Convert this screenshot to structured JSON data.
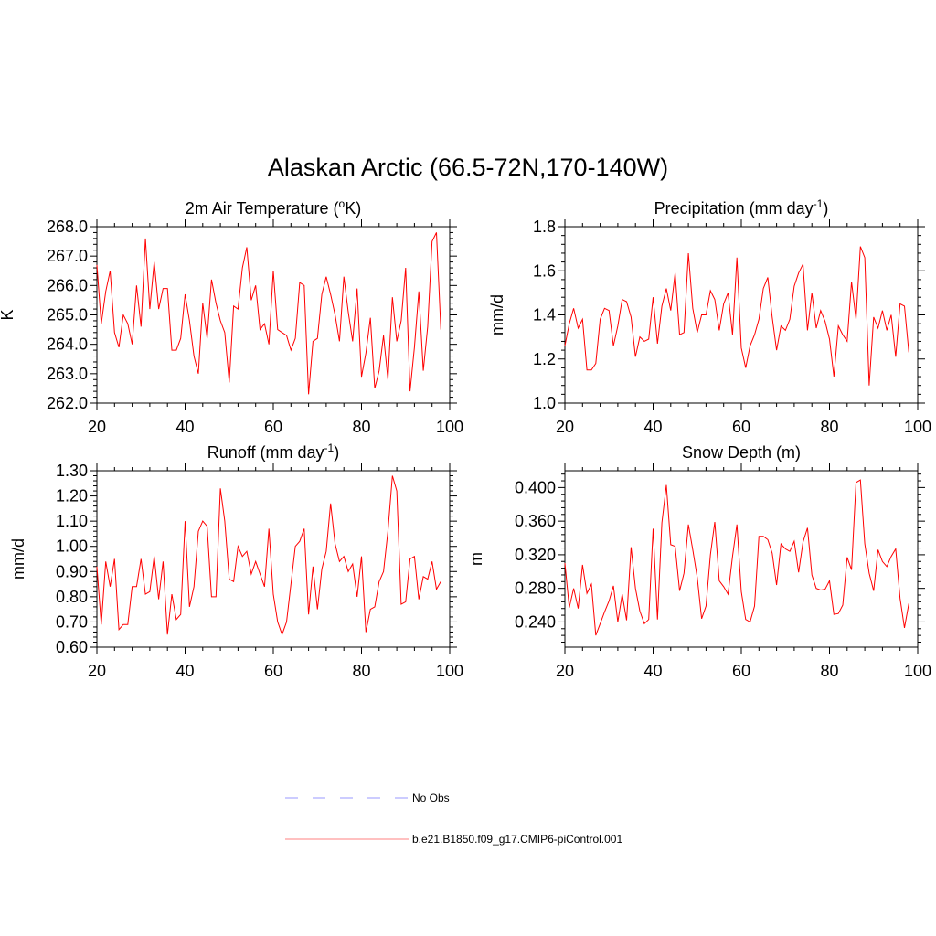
{
  "figure": {
    "title": "Alaskan Arctic (66.5-72N,170-140W)"
  },
  "legend": {
    "entries": [
      {
        "label": "No Obs",
        "color": "#9999ff",
        "dash": true
      },
      {
        "label": "b.e21.B1850.f09_g17.CMIP6-piControl.001",
        "color": "#ff8080",
        "dash": false
      }
    ]
  },
  "colors": {
    "series": "#ff0000",
    "axis": "#000000"
  },
  "chart_data": [
    {
      "type": "line",
      "title": "2m Air Temperature",
      "title_sup": "o",
      "title_pre": "2m Air Temperature (",
      "title_post": "K)",
      "ylabel": "K",
      "xlim": [
        20,
        100
      ],
      "ylim": [
        262.0,
        268.0
      ],
      "yticks": [
        262.0,
        263.0,
        264.0,
        265.0,
        266.0,
        267.0,
        268.0
      ],
      "ytick_labels": [
        "262.0",
        "263.0",
        "264.0",
        "265.0",
        "266.0",
        "267.0",
        "268.0"
      ],
      "xticks": [
        20,
        40,
        60,
        80,
        100
      ],
      "xtick_labels": [
        "20",
        "40",
        "60",
        "80",
        "100"
      ],
      "series": [
        {
          "name": "b.e21.B1850.f09_g17.CMIP6-piControl.001",
          "x": [
            20,
            21,
            22,
            23,
            24,
            25,
            26,
            27,
            28,
            29,
            30,
            31,
            32,
            33,
            34,
            35,
            36,
            37,
            38,
            39,
            40,
            41,
            42,
            43,
            44,
            45,
            46,
            47,
            48,
            49,
            50,
            51,
            52,
            53,
            54,
            55,
            56,
            57,
            58,
            59,
            60,
            61,
            62,
            63,
            64,
            65,
            66,
            67,
            68,
            69,
            70,
            71,
            72,
            73,
            74,
            75,
            76,
            77,
            78,
            79,
            80,
            81,
            82,
            83,
            84,
            85,
            86,
            87,
            88,
            89,
            90,
            91,
            92,
            93,
            94,
            95,
            96,
            97,
            98
          ],
          "values": [
            266.7,
            264.7,
            265.8,
            266.5,
            264.4,
            263.9,
            265.0,
            264.7,
            264.0,
            266.0,
            264.6,
            267.6,
            265.2,
            266.8,
            265.2,
            265.9,
            265.9,
            263.8,
            263.8,
            264.2,
            265.7,
            264.8,
            263.6,
            263.0,
            265.4,
            264.2,
            266.2,
            265.4,
            264.8,
            264.4,
            262.7,
            265.3,
            265.2,
            266.6,
            267.3,
            265.5,
            266.0,
            264.5,
            264.7,
            264.0,
            266.5,
            264.5,
            264.4,
            264.3,
            263.8,
            264.2,
            266.1,
            266.0,
            262.3,
            264.1,
            264.2,
            265.7,
            266.3,
            265.7,
            265.0,
            264.1,
            266.3,
            265.1,
            264.1,
            265.9,
            262.9,
            263.7,
            264.9,
            262.5,
            263.1,
            264.3,
            262.8,
            265.6,
            264.1,
            264.8,
            266.6,
            262.4,
            263.9,
            265.8,
            263.1,
            264.6,
            267.5,
            267.8,
            264.5
          ]
        }
      ]
    },
    {
      "type": "line",
      "title_pre": "Precipitation (mm day",
      "title_sup": "-1",
      "title_post": ")",
      "ylabel": "mm/d",
      "xlim": [
        20,
        100
      ],
      "ylim": [
        1.0,
        1.8
      ],
      "yticks": [
        1.0,
        1.2,
        1.4,
        1.6,
        1.8
      ],
      "ytick_labels": [
        "1.0",
        "1.2",
        "1.4",
        "1.6",
        "1.8"
      ],
      "xticks": [
        20,
        40,
        60,
        80,
        100
      ],
      "xtick_labels": [
        "20",
        "40",
        "60",
        "80",
        "100"
      ],
      "series": [
        {
          "name": "b.e21.B1850.f09_g17.CMIP6-piControl.001",
          "x": [
            20,
            21,
            22,
            23,
            24,
            25,
            26,
            27,
            28,
            29,
            30,
            31,
            32,
            33,
            34,
            35,
            36,
            37,
            38,
            39,
            40,
            41,
            42,
            43,
            44,
            45,
            46,
            47,
            48,
            49,
            50,
            51,
            52,
            53,
            54,
            55,
            56,
            57,
            58,
            59,
            60,
            61,
            62,
            63,
            64,
            65,
            66,
            67,
            68,
            69,
            70,
            71,
            72,
            73,
            74,
            75,
            76,
            77,
            78,
            79,
            80,
            81,
            82,
            83,
            84,
            85,
            86,
            87,
            88,
            89,
            90,
            91,
            92,
            93,
            94,
            95,
            96,
            97,
            98
          ],
          "values": [
            1.26,
            1.36,
            1.43,
            1.34,
            1.38,
            1.15,
            1.15,
            1.18,
            1.38,
            1.43,
            1.42,
            1.26,
            1.35,
            1.47,
            1.46,
            1.39,
            1.21,
            1.3,
            1.28,
            1.29,
            1.48,
            1.27,
            1.44,
            1.52,
            1.42,
            1.59,
            1.31,
            1.32,
            1.68,
            1.43,
            1.32,
            1.4,
            1.4,
            1.51,
            1.47,
            1.33,
            1.45,
            1.5,
            1.31,
            1.66,
            1.25,
            1.16,
            1.26,
            1.31,
            1.38,
            1.52,
            1.57,
            1.39,
            1.24,
            1.35,
            1.33,
            1.38,
            1.53,
            1.59,
            1.63,
            1.33,
            1.5,
            1.34,
            1.42,
            1.37,
            1.29,
            1.12,
            1.35,
            1.31,
            1.28,
            1.55,
            1.38,
            1.71,
            1.66,
            1.08,
            1.39,
            1.34,
            1.42,
            1.33,
            1.4,
            1.21,
            1.45,
            1.44,
            1.23
          ]
        }
      ]
    },
    {
      "type": "line",
      "title_pre": "Runoff (mm day",
      "title_sup": "-1",
      "title_post": ")",
      "ylabel": "mm/d",
      "xlim": [
        20,
        100
      ],
      "ylim": [
        0.6,
        1.3
      ],
      "yticks": [
        0.6,
        0.7,
        0.8,
        0.9,
        1.0,
        1.1,
        1.2,
        1.3
      ],
      "ytick_labels": [
        "0.60",
        "0.70",
        "0.80",
        "0.90",
        "1.00",
        "1.10",
        "1.20",
        "1.30"
      ],
      "xticks": [
        20,
        40,
        60,
        80,
        100
      ],
      "xtick_labels": [
        "20",
        "40",
        "60",
        "80",
        "100"
      ],
      "series": [
        {
          "name": "b.e21.B1850.f09_g17.CMIP6-piControl.001",
          "x": [
            20,
            21,
            22,
            23,
            24,
            25,
            26,
            27,
            28,
            29,
            30,
            31,
            32,
            33,
            34,
            35,
            36,
            37,
            38,
            39,
            40,
            41,
            42,
            43,
            44,
            45,
            46,
            47,
            48,
            49,
            50,
            51,
            52,
            53,
            54,
            55,
            56,
            57,
            58,
            59,
            60,
            61,
            62,
            63,
            64,
            65,
            66,
            67,
            68,
            69,
            70,
            71,
            72,
            73,
            74,
            75,
            76,
            77,
            78,
            79,
            80,
            81,
            82,
            83,
            84,
            85,
            86,
            87,
            88,
            89,
            90,
            91,
            92,
            93,
            94,
            95,
            96,
            97,
            98
          ],
          "values": [
            0.92,
            0.69,
            0.94,
            0.84,
            0.95,
            0.67,
            0.69,
            0.69,
            0.84,
            0.84,
            0.95,
            0.81,
            0.82,
            0.96,
            0.79,
            0.94,
            0.65,
            0.81,
            0.71,
            0.73,
            1.1,
            0.76,
            0.84,
            1.06,
            1.1,
            1.08,
            0.8,
            0.8,
            1.23,
            1.1,
            0.87,
            0.86,
            1.0,
            0.96,
            0.98,
            0.89,
            0.94,
            0.89,
            0.84,
            1.07,
            0.81,
            0.7,
            0.65,
            0.7,
            0.85,
            1.0,
            1.02,
            1.07,
            0.73,
            0.92,
            0.75,
            0.91,
            0.98,
            1.17,
            1.01,
            0.94,
            0.96,
            0.9,
            0.93,
            0.8,
            0.96,
            0.66,
            0.75,
            0.76,
            0.86,
            0.9,
            1.06,
            1.28,
            1.22,
            0.77,
            0.78,
            0.95,
            0.96,
            0.79,
            0.88,
            0.87,
            0.94,
            0.83,
            0.86
          ]
        }
      ]
    },
    {
      "type": "line",
      "title_pre": "Snow Depth (m)",
      "title_sup": "",
      "title_post": "",
      "ylabel": "m",
      "xlim": [
        20,
        100
      ],
      "ylim": [
        0.21,
        0.42
      ],
      "yticks": [
        0.24,
        0.28,
        0.32,
        0.36,
        0.4
      ],
      "ytick_labels": [
        "0.240",
        "0.280",
        "0.320",
        "0.360",
        "0.400"
      ],
      "xticks": [
        20,
        40,
        60,
        80,
        100
      ],
      "xtick_labels": [
        "20",
        "40",
        "60",
        "80",
        "100"
      ],
      "series": [
        {
          "name": "b.e21.B1850.f09_g17.CMIP6-piControl.001",
          "x": [
            20,
            21,
            22,
            23,
            24,
            25,
            26,
            27,
            28,
            29,
            30,
            31,
            32,
            33,
            34,
            35,
            36,
            37,
            38,
            39,
            40,
            41,
            42,
            43,
            44,
            45,
            46,
            47,
            48,
            49,
            50,
            51,
            52,
            53,
            54,
            55,
            56,
            57,
            58,
            59,
            60,
            61,
            62,
            63,
            64,
            65,
            66,
            67,
            68,
            69,
            70,
            71,
            72,
            73,
            74,
            75,
            76,
            77,
            78,
            79,
            80,
            81,
            82,
            83,
            84,
            85,
            86,
            87,
            88,
            89,
            90,
            91,
            92,
            93,
            94,
            95,
            96,
            97,
            98
          ],
          "values": [
            0.31,
            0.257,
            0.28,
            0.256,
            0.308,
            0.274,
            0.285,
            0.224,
            0.238,
            0.252,
            0.265,
            0.283,
            0.24,
            0.273,
            0.242,
            0.329,
            0.28,
            0.253,
            0.238,
            0.243,
            0.351,
            0.243,
            0.358,
            0.403,
            0.332,
            0.33,
            0.277,
            0.298,
            0.356,
            0.326,
            0.293,
            0.244,
            0.259,
            0.32,
            0.359,
            0.289,
            0.282,
            0.273,
            0.318,
            0.356,
            0.276,
            0.243,
            0.24,
            0.259,
            0.342,
            0.342,
            0.338,
            0.322,
            0.284,
            0.333,
            0.327,
            0.324,
            0.336,
            0.299,
            0.335,
            0.352,
            0.296,
            0.28,
            0.278,
            0.279,
            0.289,
            0.249,
            0.25,
            0.26,
            0.317,
            0.302,
            0.406,
            0.409,
            0.333,
            0.298,
            0.277,
            0.326,
            0.312,
            0.306,
            0.318,
            0.327,
            0.268,
            0.233,
            0.262
          ]
        }
      ]
    }
  ]
}
